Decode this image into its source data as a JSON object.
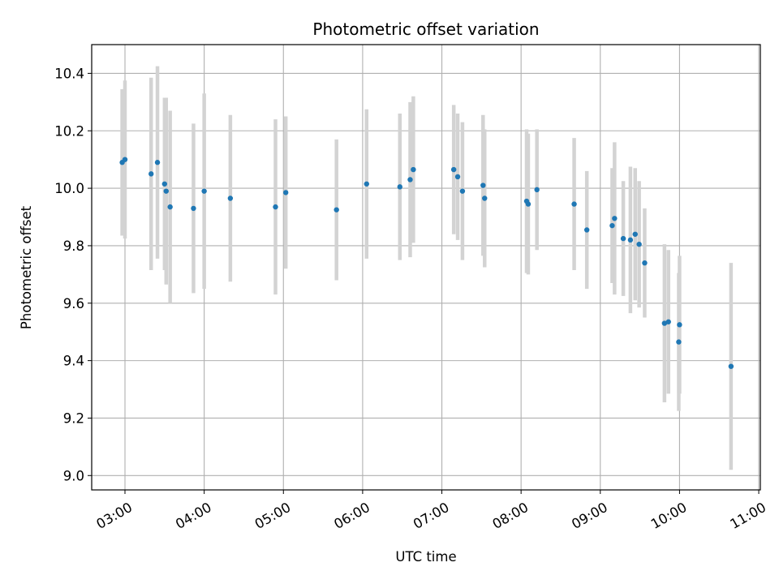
{
  "chart_data": {
    "type": "scatter",
    "title": "Photometric offset variation",
    "xlabel": "UTC time",
    "ylabel": "Photometric offset",
    "xlim_hours": [
      2.58,
      11.02
    ],
    "ylim": [
      8.95,
      10.5
    ],
    "grid": true,
    "x_ticks": [
      {
        "value": 3,
        "label": "03:00"
      },
      {
        "value": 4,
        "label": "04:00"
      },
      {
        "value": 5,
        "label": "05:00"
      },
      {
        "value": 6,
        "label": "06:00"
      },
      {
        "value": 7,
        "label": "07:00"
      },
      {
        "value": 8,
        "label": "08:00"
      },
      {
        "value": 9,
        "label": "09:00"
      },
      {
        "value": 10,
        "label": "10:00"
      },
      {
        "value": 11,
        "label": "11:00"
      }
    ],
    "y_ticks": [
      {
        "value": 9.0,
        "label": "9.0"
      },
      {
        "value": 9.2,
        "label": "9.2"
      },
      {
        "value": 9.4,
        "label": "9.4"
      },
      {
        "value": 9.6,
        "label": "9.6"
      },
      {
        "value": 9.8,
        "label": "9.8"
      },
      {
        "value": 10.0,
        "label": "10.0"
      },
      {
        "value": 10.2,
        "label": "10.2"
      },
      {
        "value": 10.4,
        "label": "10.4"
      }
    ],
    "points": [
      {
        "x": 2.965,
        "y": 10.09,
        "err": 0.255
      },
      {
        "x": 3.0,
        "y": 10.1,
        "err": 0.275
      },
      {
        "x": 3.33,
        "y": 10.05,
        "err": 0.335
      },
      {
        "x": 3.41,
        "y": 10.09,
        "err": 0.335
      },
      {
        "x": 3.5,
        "y": 10.015,
        "err": 0.3
      },
      {
        "x": 3.52,
        "y": 9.99,
        "err": 0.325
      },
      {
        "x": 3.57,
        "y": 9.935,
        "err": 0.335
      },
      {
        "x": 3.865,
        "y": 9.93,
        "err": 0.295
      },
      {
        "x": 4.0,
        "y": 9.99,
        "err": 0.34
      },
      {
        "x": 4.33,
        "y": 9.965,
        "err": 0.29
      },
      {
        "x": 4.9,
        "y": 9.935,
        "err": 0.305
      },
      {
        "x": 5.03,
        "y": 9.985,
        "err": 0.265
      },
      {
        "x": 5.67,
        "y": 9.925,
        "err": 0.245
      },
      {
        "x": 6.05,
        "y": 10.015,
        "err": 0.26
      },
      {
        "x": 6.47,
        "y": 10.005,
        "err": 0.255
      },
      {
        "x": 6.6,
        "y": 10.03,
        "err": 0.27
      },
      {
        "x": 6.64,
        "y": 10.065,
        "err": 0.255
      },
      {
        "x": 7.15,
        "y": 10.065,
        "err": 0.225
      },
      {
        "x": 7.2,
        "y": 10.04,
        "err": 0.22
      },
      {
        "x": 7.26,
        "y": 9.99,
        "err": 0.24
      },
      {
        "x": 7.52,
        "y": 10.01,
        "err": 0.245
      },
      {
        "x": 7.54,
        "y": 9.965,
        "err": 0.24
      },
      {
        "x": 8.07,
        "y": 9.955,
        "err": 0.25
      },
      {
        "x": 8.09,
        "y": 9.945,
        "err": 0.245
      },
      {
        "x": 8.2,
        "y": 9.995,
        "err": 0.21
      },
      {
        "x": 8.67,
        "y": 9.945,
        "err": 0.23
      },
      {
        "x": 8.83,
        "y": 9.855,
        "err": 0.205
      },
      {
        "x": 9.15,
        "y": 9.87,
        "err": 0.2
      },
      {
        "x": 9.18,
        "y": 9.895,
        "err": 0.265
      },
      {
        "x": 9.29,
        "y": 9.825,
        "err": 0.2
      },
      {
        "x": 9.38,
        "y": 9.82,
        "err": 0.255
      },
      {
        "x": 9.44,
        "y": 9.84,
        "err": 0.23
      },
      {
        "x": 9.49,
        "y": 9.805,
        "err": 0.22
      },
      {
        "x": 9.56,
        "y": 9.74,
        "err": 0.19
      },
      {
        "x": 9.81,
        "y": 9.53,
        "err": 0.275
      },
      {
        "x": 9.86,
        "y": 9.535,
        "err": 0.25
      },
      {
        "x": 9.99,
        "y": 9.465,
        "err": 0.24
      },
      {
        "x": 10.0,
        "y": 9.525,
        "err": 0.24
      },
      {
        "x": 10.65,
        "y": 9.38,
        "err": 0.36
      }
    ]
  }
}
